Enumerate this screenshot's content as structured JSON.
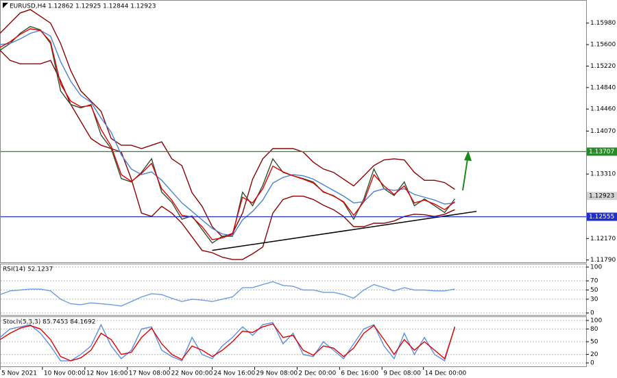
{
  "chart_data": [
    {
      "type": "line",
      "title": "EURUSD,H4  1.12862 1.12925 1.12844 1.12923",
      "x": [
        0,
        1,
        2,
        3,
        4,
        5,
        6,
        7,
        8,
        9,
        10,
        11,
        12,
        13,
        14,
        15,
        16,
        17,
        18,
        19,
        20,
        21,
        22,
        23,
        24,
        25,
        26,
        27,
        28,
        29,
        30,
        31,
        32,
        33,
        34,
        35,
        36,
        37,
        38,
        39,
        40,
        41,
        42,
        43,
        44,
        45
      ],
      "xlim": [
        0,
        58
      ],
      "xticks": [
        {
          "value": 0,
          "label": "5 Nov 2021"
        },
        {
          "value": 4.2,
          "label": "10 Nov 00:00"
        },
        {
          "value": 8.4,
          "label": "12 Nov 16:00"
        },
        {
          "value": 12.6,
          "label": "17 Nov 08:00"
        },
        {
          "value": 16.8,
          "label": "22 Nov 00:00"
        },
        {
          "value": 21.0,
          "label": "24 Nov 16:00"
        },
        {
          "value": 25.2,
          "label": "29 Nov 08:00"
        },
        {
          "value": 29.4,
          "label": "2 Dec 00:00"
        },
        {
          "value": 33.6,
          "label": "6 Dec 16:00"
        },
        {
          "value": 37.8,
          "label": "9 Dec 08:00"
        },
        {
          "value": 41.9,
          "label": "14 Dec 00:00"
        }
      ],
      "ylim": [
        1.1175,
        1.1634
      ],
      "yticks": [
        {
          "value": 1.1598,
          "label": "1.15980"
        },
        {
          "value": 1.156,
          "label": "1.15600"
        },
        {
          "value": 1.1522,
          "label": "1.15220"
        },
        {
          "value": 1.1484,
          "label": "1.14840"
        },
        {
          "value": 1.1446,
          "label": "1.14460"
        },
        {
          "value": 1.1407,
          "label": "1.14070"
        },
        {
          "value": 1.1331,
          "label": "1.13310"
        },
        {
          "value": 1.1217,
          "label": "1.12170"
        },
        {
          "value": 1.1179,
          "label": "1.11790"
        }
      ],
      "series": [
        {
          "color": "#8b0000",
          "values": [
            1.158,
            1.1598,
            1.1616,
            1.1622,
            1.161,
            1.1598,
            1.1562,
            1.1514,
            1.1478,
            1.146,
            1.1442,
            1.1394,
            1.1382,
            1.1382,
            1.1376,
            1.1382,
            1.1388,
            1.1358,
            1.1346,
            1.1298,
            1.1274,
            1.1238,
            1.122,
            1.1226,
            1.1262,
            1.1322,
            1.1358,
            1.1376,
            1.1376,
            1.1376,
            1.137,
            1.1352,
            1.134,
            1.1334,
            1.1322,
            1.131,
            1.1328,
            1.1346,
            1.1356,
            1.1358,
            1.1356,
            1.1334,
            1.132,
            1.132,
            1.1316,
            1.1304
          ]
        },
        {
          "color": "#8b0000",
          "values": [
            1.155,
            1.1532,
            1.1526,
            1.1526,
            1.1526,
            1.1532,
            1.1496,
            1.1454,
            1.1424,
            1.1394,
            1.1382,
            1.1376,
            1.137,
            1.1322,
            1.1262,
            1.1256,
            1.1274,
            1.1262,
            1.1244,
            1.122,
            1.1196,
            1.1192,
            1.1184,
            1.118,
            1.118,
            1.119,
            1.1202,
            1.1262,
            1.1286,
            1.1292,
            1.1292,
            1.1286,
            1.1276,
            1.1268,
            1.1256,
            1.1238,
            1.1238,
            1.1244,
            1.1244,
            1.1248,
            1.1256,
            1.126,
            1.1259,
            1.1256,
            1.126,
            1.1268
          ]
        },
        {
          "color": "#2f4f2f",
          "values": [
            1.155,
            1.1562,
            1.158,
            1.1592,
            1.1586,
            1.1562,
            1.1478,
            1.1454,
            1.1448,
            1.1454,
            1.14,
            1.1376,
            1.1323,
            1.1317,
            1.1334,
            1.1358,
            1.1299,
            1.1281,
            1.1251,
            1.1257,
            1.1233,
            1.1209,
            1.1221,
            1.1221,
            1.1299,
            1.1275,
            1.1311,
            1.1358,
            1.1334,
            1.1328,
            1.1323,
            1.1317,
            1.1299,
            1.1293,
            1.1281,
            1.1251,
            1.1287,
            1.134,
            1.1305,
            1.1293,
            1.1317,
            1.1275,
            1.1287,
            1.1275,
            1.1263,
            1.1287
          ]
        },
        {
          "color": "#4a7fd4",
          "values": [
            1.156,
            1.1562,
            1.157,
            1.158,
            1.1585,
            1.1575,
            1.153,
            1.1495,
            1.147,
            1.1458,
            1.143,
            1.1405,
            1.1365,
            1.134,
            1.133,
            1.1335,
            1.132,
            1.13,
            1.128,
            1.1265,
            1.125,
            1.1235,
            1.1225,
            1.1222,
            1.125,
            1.1265,
            1.1285,
            1.1315,
            1.1325,
            1.133,
            1.1328,
            1.1322,
            1.1312,
            1.1302,
            1.1292,
            1.128,
            1.1282,
            1.13,
            1.1305,
            1.1302,
            1.1305,
            1.1295,
            1.129,
            1.1285,
            1.1278,
            1.128
          ]
        },
        {
          "color": "#e00000",
          "values": [
            1.1555,
            1.1565,
            1.1578,
            1.1588,
            1.1585,
            1.1565,
            1.149,
            1.146,
            1.145,
            1.1452,
            1.141,
            1.138,
            1.133,
            1.1318,
            1.1332,
            1.135,
            1.1305,
            1.1285,
            1.1258,
            1.1255,
            1.1238,
            1.1215,
            1.1218,
            1.1225,
            1.129,
            1.128,
            1.1305,
            1.1345,
            1.1335,
            1.1328,
            1.1322,
            1.1315,
            1.13,
            1.1292,
            1.1282,
            1.1258,
            1.1282,
            1.133,
            1.131,
            1.1295,
            1.131,
            1.128,
            1.1285,
            1.1278,
            1.1268,
            1.1282
          ]
        }
      ],
      "trendline": {
        "x": [
          21,
          47.15
        ],
        "values": [
          1.1196,
          1.1265
        ],
        "color": "#000000"
      },
      "price_labels": [
        {
          "value": 1.13707,
          "color": "#2a8a2a",
          "line": true
        },
        {
          "value": 1.12555,
          "color": "#1f2fc8",
          "line": true
        },
        {
          "value": 1.12923,
          "color": "#d4d4d4",
          "line": false
        }
      ]
    },
    {
      "type": "line",
      "title": "RSI(14) 52.1237",
      "ylim": [
        0,
        100
      ],
      "yticks": [
        0,
        30,
        50,
        70,
        100
      ],
      "grid": true,
      "series": [
        {
          "color": "#6f9be0",
          "values": [
            40,
            48,
            50,
            52,
            52,
            48,
            30,
            20,
            18,
            22,
            20,
            18,
            15,
            25,
            35,
            42,
            40,
            32,
            25,
            30,
            28,
            25,
            30,
            35,
            55,
            55,
            62,
            68,
            60,
            58,
            50,
            50,
            45,
            45,
            40,
            32,
            50,
            62,
            55,
            48,
            55,
            50,
            50,
            48,
            48,
            52
          ]
        }
      ]
    },
    {
      "type": "line",
      "title": "Stoch(5,3,3) 85.7453 84.1692",
      "ylim": [
        0,
        100
      ],
      "yticks": [
        0,
        20,
        50,
        80,
        100
      ],
      "grid": true,
      "series": [
        {
          "color": "#5b8ee0",
          "values": [
            60,
            80,
            85,
            90,
            70,
            40,
            5,
            5,
            20,
            40,
            90,
            40,
            10,
            30,
            80,
            85,
            30,
            15,
            5,
            60,
            20,
            10,
            40,
            60,
            85,
            65,
            90,
            95,
            45,
            70,
            20,
            15,
            50,
            30,
            10,
            45,
            80,
            90,
            40,
            10,
            70,
            20,
            60,
            20,
            5,
            86
          ]
        },
        {
          "color": "#e00000",
          "values": [
            55,
            70,
            82,
            88,
            80,
            55,
            15,
            5,
            12,
            30,
            70,
            55,
            20,
            25,
            60,
            82,
            45,
            20,
            8,
            40,
            30,
            15,
            30,
            50,
            75,
            72,
            85,
            92,
            60,
            65,
            30,
            18,
            40,
            35,
            15,
            35,
            70,
            88,
            55,
            20,
            55,
            30,
            50,
            30,
            10,
            84
          ]
        }
      ]
    }
  ]
}
